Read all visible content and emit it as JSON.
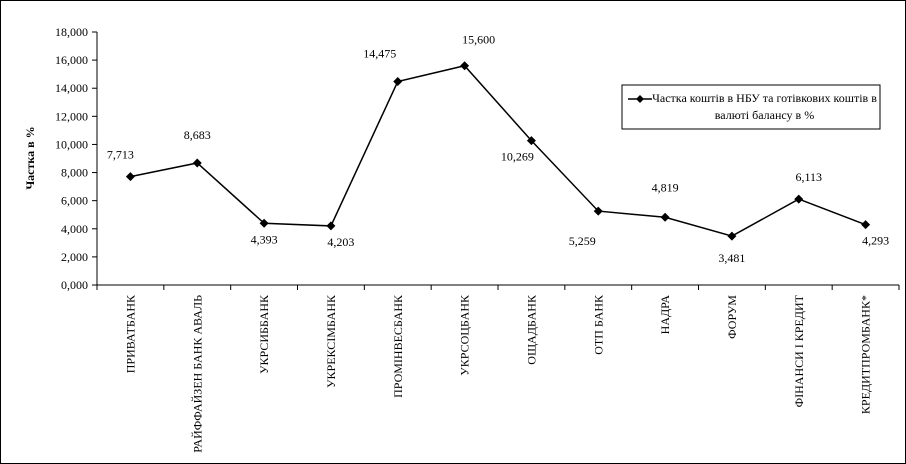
{
  "chart_data": {
    "type": "line",
    "y_label": "Частка в %",
    "categories": [
      "ПРИВАТБАНК",
      "РАЙФФАЙЗЕН БАНК АВАЛЬ",
      "УКРСИББАНК",
      "УКРЕКСІМБАНК",
      "ПРОМІНВЕСБАНК",
      "УКРСОЦБАНК",
      "ОЩАДБАНК",
      "ОТП БАНК",
      "НАДРА",
      "ФОРУМ",
      "ФІНАНСИ І КРЕДИТ",
      "КРЕДИТПРОМБАНК*"
    ],
    "series": [
      {
        "name": "Частка коштів в НБУ та готівкових коштів в валюті балансу в %",
        "color": "#000000",
        "values": [
          7.713,
          8.683,
          4.393,
          4.203,
          14.475,
          15.6,
          10.269,
          5.259,
          4.819,
          3.481,
          6.113,
          4.293
        ],
        "value_labels": [
          "7,713",
          "8,683",
          "4,393",
          "4,203",
          "14,475",
          "15,600",
          "10,269",
          "5,259",
          "4,819",
          "3,481",
          "6,113",
          "4,293"
        ]
      }
    ],
    "ylim": [
      0,
      18
    ],
    "yticks": [
      {
        "value": 0,
        "label": "0,000"
      },
      {
        "value": 2,
        "label": "2,000"
      },
      {
        "value": 4,
        "label": "4,000"
      },
      {
        "value": 6,
        "label": "6,000"
      },
      {
        "value": 8,
        "label": "8,000"
      },
      {
        "value": 10,
        "label": "10,000"
      },
      {
        "value": 12,
        "label": "12,000"
      },
      {
        "value": 14,
        "label": "14,000"
      },
      {
        "value": 16,
        "label": "16,000"
      },
      {
        "value": 18,
        "label": "18,000"
      }
    ],
    "grid": false
  }
}
